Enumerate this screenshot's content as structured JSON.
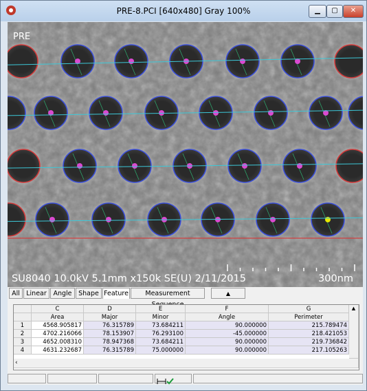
{
  "window": {
    "title": "PRE-8.PCI [640x480] Gray 100%"
  },
  "image": {
    "label": "PRE",
    "info": "SU8040 10.0kV 5.1mm x150k SE(U) 2/11/2015",
    "scale": "300nm"
  },
  "tabs": [
    "All",
    "Linear",
    "Angle",
    "Shape",
    "Feature",
    "Measurement Sequence"
  ],
  "active_tab": "Feature",
  "table": {
    "columns": [
      "C",
      "D",
      "E",
      "F",
      "G"
    ],
    "headers": [
      "Area",
      "Major",
      "Minor",
      "Angle",
      "Perimeter"
    ],
    "row_numbers": [
      "1",
      "2",
      "3",
      "4"
    ],
    "rows": [
      [
        "4568.905817",
        "76.315789",
        "73.684211",
        "90.000000",
        "215.789474"
      ],
      [
        "4702.216066",
        "78.153907",
        "76.293100",
        "-45.000000",
        "218.421053"
      ],
      [
        "4652.008310",
        "78.947368",
        "73.684211",
        "90.000000",
        "219.736842"
      ],
      [
        "4631.232687",
        "76.315789",
        "75.000000",
        "90.000000",
        "217.105263"
      ]
    ]
  }
}
